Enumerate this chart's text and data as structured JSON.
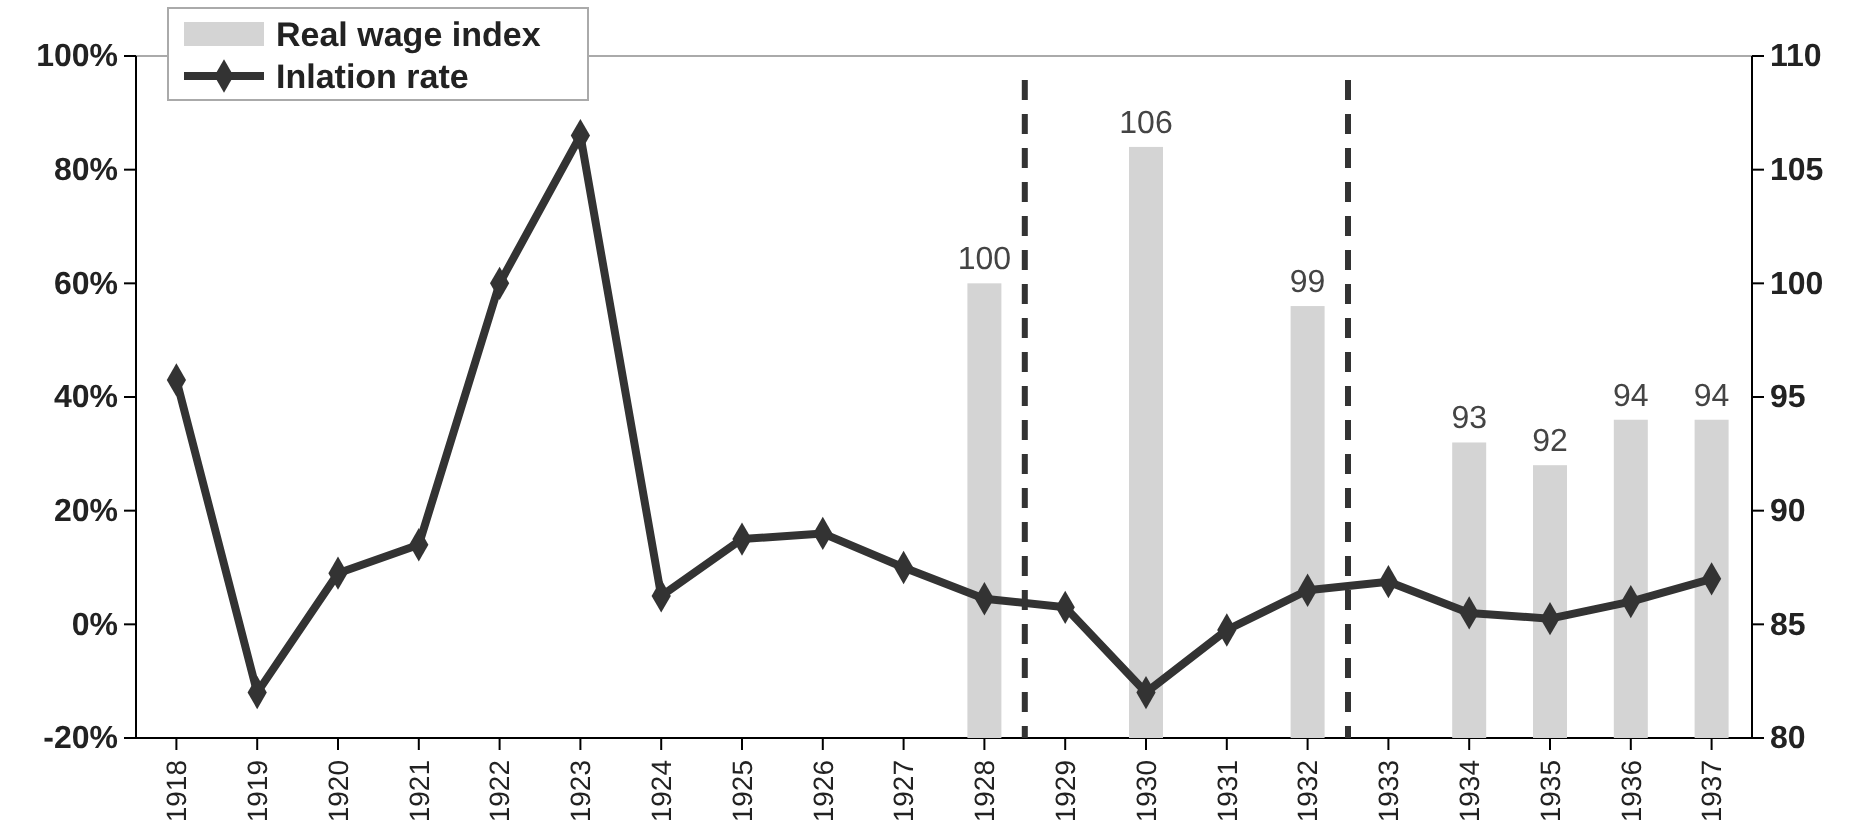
{
  "chart_data": {
    "type": "line",
    "x": [
      1918,
      1919,
      1920,
      1921,
      1922,
      1923,
      1924,
      1925,
      1926,
      1927,
      1928,
      1929,
      1930,
      1931,
      1932,
      1933,
      1934,
      1935,
      1936,
      1937
    ],
    "xlim": [
      1917.5,
      1937.5
    ],
    "xticks": [
      1918,
      1919,
      1920,
      1921,
      1922,
      1923,
      1924,
      1925,
      1926,
      1927,
      1928,
      1929,
      1930,
      1931,
      1932,
      1933,
      1934,
      1935,
      1936,
      1937
    ],
    "ylim": [
      -20,
      100
    ],
    "yticks": [
      {
        "value": -20,
        "label": "-20%"
      },
      {
        "value": 0,
        "label": "0%"
      },
      {
        "value": 20,
        "label": "20%"
      },
      {
        "value": 40,
        "label": "40%"
      },
      {
        "value": 60,
        "label": "60%"
      },
      {
        "value": 80,
        "label": "80%"
      },
      {
        "value": 100,
        "label": "100%"
      }
    ],
    "y2lim": [
      80,
      110
    ],
    "y2ticks": [
      80,
      85,
      90,
      95,
      100,
      105,
      110
    ],
    "series": [
      {
        "name": "Real wage index",
        "type": "bar",
        "axis": "y2",
        "color": "#d4d4d4",
        "x": [
          1928,
          1930,
          1932,
          1934,
          1935,
          1936,
          1937
        ],
        "values": [
          100,
          106,
          99,
          93,
          92,
          94,
          94
        ],
        "value_labels": [
          "100",
          "106",
          "99",
          "93",
          "92",
          "94",
          "94"
        ]
      },
      {
        "name": "Inlation rate",
        "color": "#333333",
        "values": [
          43,
          -12,
          9,
          14,
          60,
          86,
          5,
          15,
          16,
          10,
          4.5,
          3,
          -12,
          -1,
          6,
          7.5,
          2,
          1,
          4,
          8
        ]
      }
    ],
    "marker": "diamond",
    "line_style": "solid",
    "legend": "top left",
    "grid": false,
    "ref_lines": [
      {
        "axis": "x",
        "value": 1928.5,
        "color": "#333333",
        "line_style": "dashed"
      },
      {
        "axis": "x",
        "value": 1932.5,
        "color": "#333333",
        "line_style": "dashed"
      }
    ]
  }
}
